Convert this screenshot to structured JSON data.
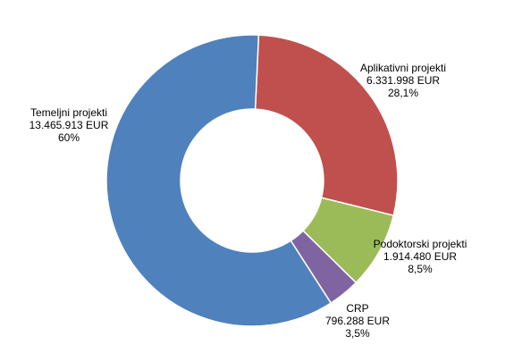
{
  "chart_data": {
    "type": "pie",
    "variant": "donut",
    "title": "",
    "currency": "EUR",
    "legend": "none",
    "slices": [
      {
        "label": "Aplikativni  projekti",
        "value": 6331998,
        "value_text": "6.331.998 EUR",
        "percent": 28.1,
        "percent_text": "28,1%",
        "color": "#C0504D"
      },
      {
        "label": "Podoktorski projekti",
        "value": 1914480,
        "value_text": "1.914.480 EUR",
        "percent": 8.5,
        "percent_text": "8,5%",
        "color": "#9BBB59"
      },
      {
        "label": "CRP",
        "value": 796288,
        "value_text": "796.288 EUR",
        "percent": 3.5,
        "percent_text": "3,5%",
        "color": "#8064A2"
      },
      {
        "label": "Temeljni projekti",
        "value": 13465913,
        "value_text": "13.465.913 EUR",
        "percent": 60,
        "percent_text": "60%",
        "color": "#4F81BD"
      }
    ]
  }
}
